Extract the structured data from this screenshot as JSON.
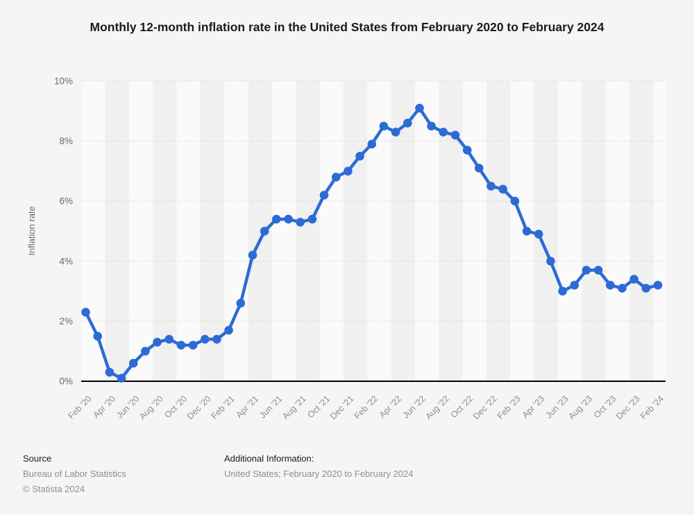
{
  "chart_data": {
    "type": "line",
    "title": "Monthly 12-month inflation rate in the United States from February 2020 to February 2024",
    "ylabel": "Inflation rate",
    "xlabel": "",
    "ylim": [
      0,
      10
    ],
    "ytick_values": [
      0,
      2,
      4,
      6,
      8,
      10
    ],
    "ytick_labels": [
      "0%",
      "2%",
      "4%",
      "6%",
      "8%",
      "10%"
    ],
    "x_tick_every": 2,
    "grid": "horizontal-dotted",
    "legend_position": "none",
    "x": [
      "Feb '20",
      "Mar '20",
      "Apr '20",
      "May '20",
      "Jun '20",
      "Jul '20",
      "Aug '20",
      "Sep '20",
      "Oct '20",
      "Nov '20",
      "Dec '20",
      "Jan '21",
      "Feb '21",
      "Mar '21",
      "Apr '21",
      "May '21",
      "Jun '21",
      "Jul '21",
      "Aug '21",
      "Sep '21",
      "Oct '21",
      "Nov '21",
      "Dec '21",
      "Jan '22",
      "Feb '22",
      "Mar '22",
      "Apr '22",
      "May '22",
      "Jun '22",
      "Jul '22",
      "Aug '22",
      "Sep '22",
      "Oct '22",
      "Nov '22",
      "Dec '22",
      "Jan '23",
      "Feb '23",
      "Mar '23",
      "Apr '23",
      "May '23",
      "Jun '23",
      "Jul '23",
      "Aug '23",
      "Sep '23",
      "Oct '23",
      "Nov '23",
      "Dec '23",
      "Jan '24",
      "Feb '24"
    ],
    "series": [
      {
        "name": "Inflation rate",
        "color": "#2c6bd5",
        "values": [
          2.3,
          1.5,
          0.3,
          0.1,
          0.6,
          1.0,
          1.3,
          1.4,
          1.2,
          1.2,
          1.4,
          1.4,
          1.7,
          2.6,
          4.2,
          5.0,
          5.4,
          5.4,
          5.3,
          5.4,
          6.2,
          6.8,
          7.0,
          7.5,
          7.9,
          8.5,
          8.3,
          8.6,
          9.1,
          8.5,
          8.3,
          8.2,
          7.7,
          7.1,
          6.5,
          6.4,
          6.0,
          5.0,
          4.9,
          4.0,
          3.0,
          3.2,
          3.7,
          3.7,
          3.2,
          3.1,
          3.4,
          3.1,
          3.2
        ]
      }
    ]
  },
  "colors": {
    "page_background": "#f5f5f5",
    "plot_band_light": "#fafafa",
    "plot_band_dark": "#f0f0f0",
    "gridline": "#c9c9c9",
    "axis_line": "#000000",
    "y_tick_text": "#686868",
    "x_tick_text": "#8c8c8c",
    "line_accent": "#2c6bd5"
  },
  "footer": {
    "source_label": "Source",
    "source_name": "Bureau of Labor Statistics",
    "copyright": "© Statista 2024",
    "additional_label": "Additional Information:",
    "additional_text": "United States; February 2020 to February 2024"
  }
}
